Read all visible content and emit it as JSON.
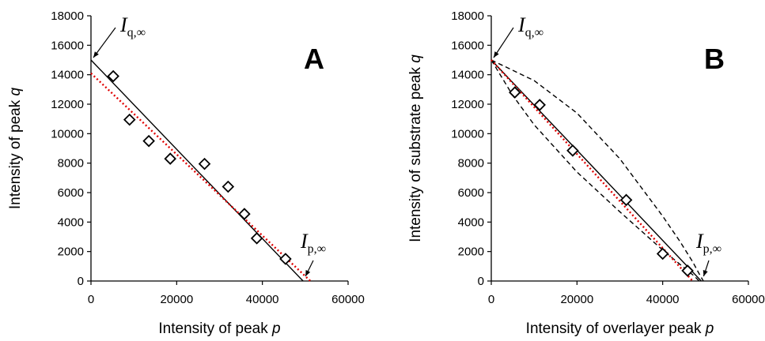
{
  "chart_data": [
    {
      "type": "scatter",
      "panel": "A",
      "xlabel": "Intensity of peak",
      "xlabel_var": "p",
      "ylabel": "Intensity of peak",
      "ylabel_var": "q",
      "xlim": [
        0,
        60000
      ],
      "ylim": [
        0,
        18000
      ],
      "x_ticks": [
        "0",
        "20000",
        "40000",
        "60000"
      ],
      "y_ticks": [
        "0",
        "2000",
        "4000",
        "6000",
        "8000",
        "10000",
        "12000",
        "14000",
        "16000",
        "18000"
      ],
      "grid": false,
      "series": [
        {
          "marker": "diamond",
          "x": [
            5200,
            9000,
            13500,
            18500,
            26500,
            32000,
            35800,
            38700,
            45400
          ],
          "y": [
            13900,
            10950,
            9500,
            8300,
            7950,
            6400,
            4550,
            2900,
            1500
          ]
        }
      ],
      "lines": [
        {
          "style": "solid",
          "color": "#000000",
          "from": [
            0,
            15000
          ],
          "to": [
            49500,
            0
          ]
        },
        {
          "style": "dotted",
          "color": "#e00000",
          "from": [
            0,
            14100
          ],
          "to": [
            51200,
            0
          ]
        }
      ],
      "annotations": [
        {
          "id": "iq",
          "main": "I",
          "sub": "q,∞",
          "target": [
            0,
            15000
          ]
        },
        {
          "id": "ip",
          "main": "I",
          "sub": "p,∞",
          "target": [
            49500,
            0
          ]
        }
      ]
    },
    {
      "type": "scatter",
      "panel": "B",
      "xlabel": "Intensity of overlayer peak",
      "xlabel_var": "p",
      "ylabel": "Intensity of substrate peak",
      "ylabel_var": "q",
      "xlim": [
        0,
        60000
      ],
      "ylim": [
        0,
        18000
      ],
      "x_ticks": [
        "0",
        "20000",
        "40000",
        "60000"
      ],
      "y_ticks": [
        "0",
        "2000",
        "4000",
        "6000",
        "8000",
        "10000",
        "12000",
        "14000",
        "16000",
        "18000"
      ],
      "grid": false,
      "series": [
        {
          "marker": "diamond",
          "x": [
            5500,
            11300,
            19000,
            31500,
            40000,
            45800
          ],
          "y": [
            12800,
            11950,
            8850,
            5500,
            1850,
            700
          ]
        }
      ],
      "lines": [
        {
          "style": "solid",
          "color": "#000000",
          "from": [
            0,
            15000
          ],
          "to": [
            49000,
            0
          ]
        },
        {
          "style": "dotted",
          "color": "#e00000",
          "from": [
            0,
            15000
          ],
          "to": [
            47000,
            0
          ]
        }
      ],
      "curves": [
        {
          "style": "dashed",
          "color": "#000000",
          "points": [
            [
              0,
              15000
            ],
            [
              10000,
              13600
            ],
            [
              20000,
              11400
            ],
            [
              30000,
              8300
            ],
            [
              40000,
              4400
            ],
            [
              44000,
              2700
            ],
            [
              47000,
              1300
            ],
            [
              48500,
              500
            ],
            [
              49500,
              0
            ]
          ]
        },
        {
          "style": "dashed",
          "color": "#000000",
          "points": [
            [
              0,
              15000
            ],
            [
              5000,
              12600
            ],
            [
              10000,
              10600
            ],
            [
              20000,
              7400
            ],
            [
              30000,
              4700
            ],
            [
              40000,
              2100
            ],
            [
              45000,
              900
            ],
            [
              47500,
              300
            ],
            [
              48500,
              0
            ]
          ]
        }
      ],
      "annotations": [
        {
          "id": "iq",
          "main": "I",
          "sub": "q,∞",
          "target": [
            0,
            15000
          ]
        },
        {
          "id": "ip",
          "main": "I",
          "sub": "p,∞",
          "target": [
            49000,
            0
          ]
        }
      ]
    }
  ]
}
